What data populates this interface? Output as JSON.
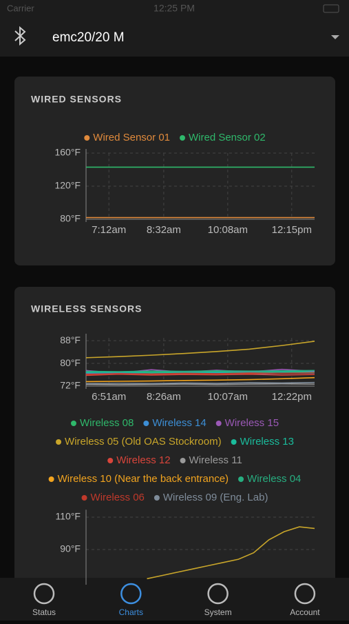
{
  "status_bar": {
    "carrier": "Carrier",
    "time": "12:25 PM"
  },
  "header": {
    "device": "emc20/20 M"
  },
  "wired": {
    "type": "line",
    "title": "WIRED SENSORS",
    "x_labels": [
      "7:12am",
      "8:32am",
      "10:08am",
      "12:15pm"
    ],
    "ylim": [
      80,
      160
    ],
    "yticks": [
      {
        "value": 160,
        "label": "160°F"
      },
      {
        "value": 120,
        "label": "120°F"
      },
      {
        "value": 80,
        "label": "80°F"
      }
    ],
    "series": [
      {
        "name": "Wired Sensor 01",
        "color": "#e08a3c",
        "values": [
          82,
          82,
          82,
          82,
          82,
          82
        ]
      },
      {
        "name": "Wired Sensor 02",
        "color": "#2fb86b",
        "values": [
          143,
          143,
          143,
          143,
          143,
          143
        ]
      }
    ]
  },
  "wireless": {
    "type": "line",
    "title": "WIRELESS SENSORS",
    "x_labels": [
      "6:51am",
      "8:26am",
      "10:07am",
      "12:22pm"
    ],
    "ylim": [
      72,
      89
    ],
    "yticks": [
      {
        "value": 88,
        "label": "88°F"
      },
      {
        "value": 80,
        "label": "80°F"
      },
      {
        "value": 72,
        "label": "72°F"
      }
    ],
    "series": [
      {
        "name": "Wireless 08",
        "color": "#2fb86b",
        "values": [
          77,
          76.8,
          77.1,
          77,
          77.2,
          76.9,
          77.1,
          77.3
        ]
      },
      {
        "name": "Wireless 14",
        "color": "#3d8fd6",
        "values": [
          76.4,
          76.6,
          76.3,
          76.5,
          76.6,
          76.4,
          76.5,
          76.6
        ]
      },
      {
        "name": "Wireless 15",
        "color": "#9b59b6",
        "values": [
          77.5,
          76.6,
          77.8,
          76.9,
          77.6,
          77,
          77.9,
          77.2
        ]
      },
      {
        "name": "Wireless 05 (Old OAS Stockroom)",
        "color": "#c9a62a",
        "values": [
          82,
          82.4,
          82.9,
          83.5,
          84.2,
          85,
          86.3,
          87.8
        ]
      },
      {
        "name": "Wireless 13",
        "color": "#1abc9c",
        "values": [
          76.8,
          76.9,
          76.7,
          76.8,
          76.9,
          76.8,
          77,
          76.9
        ]
      },
      {
        "name": "Wireless 12",
        "color": "#d9453b",
        "values": [
          75.8,
          76.2,
          75.9,
          76.1,
          76,
          76.2,
          75.9,
          76.1
        ]
      },
      {
        "name": "Wireless 11",
        "color": "#9a9a9a",
        "values": [
          72.6,
          72.5,
          72.6,
          72.7,
          72.6,
          72.7,
          72.8,
          72.7
        ]
      },
      {
        "name": "Wireless 10 (Near the back entrance)",
        "color": "#f2a41f",
        "values": [
          73.6,
          73.7,
          73.8,
          74,
          74.1,
          74.3,
          74.6,
          75
        ]
      },
      {
        "name": "Wireless 04",
        "color": "#27ae80",
        "values": [
          77.2,
          77.1,
          77.3,
          77.2,
          77.4,
          77.3,
          77.4,
          77.5
        ]
      },
      {
        "name": "Wireless 06",
        "color": "#c0392b",
        "values": [
          76.2,
          76.4,
          76.3,
          76.5,
          76.4,
          76.6,
          76.5,
          76.7
        ]
      },
      {
        "name": "Wireless 09 (Eng. Lab)",
        "color": "#7f8c9a",
        "values": [
          72.9,
          73,
          72.9,
          73.1,
          73,
          73.2,
          73.1,
          73.3
        ]
      }
    ]
  },
  "detail": {
    "type": "line",
    "ylim": [
      70,
      112
    ],
    "yticks": [
      {
        "value": 110,
        "label": "110°F"
      },
      {
        "value": 90,
        "label": "90°F"
      }
    ],
    "series": [
      {
        "color": "#c9a62a",
        "values": [
          null,
          null,
          null,
          null,
          72,
          74,
          76,
          78,
          80,
          82,
          84,
          88,
          96,
          101,
          104,
          103
        ]
      }
    ]
  },
  "tabs": [
    "Status",
    "Charts",
    "System",
    "Account"
  ],
  "active_tab": 1,
  "active_color": "#3d8fe0"
}
